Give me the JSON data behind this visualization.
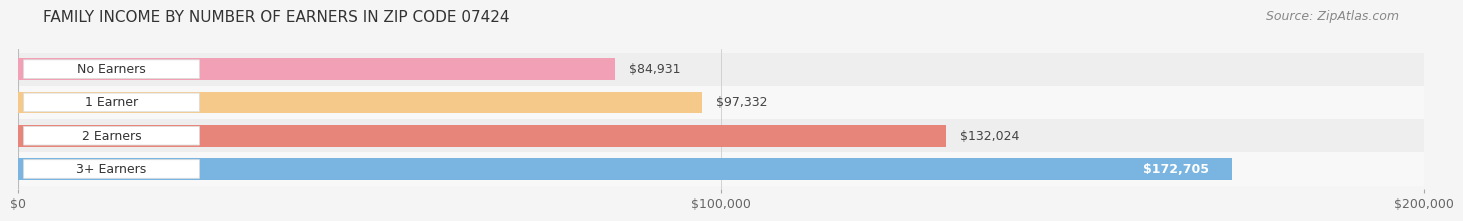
{
  "title": "FAMILY INCOME BY NUMBER OF EARNERS IN ZIP CODE 07424",
  "source": "Source: ZipAtlas.com",
  "categories": [
    "No Earners",
    "1 Earner",
    "2 Earners",
    "3+ Earners"
  ],
  "values": [
    84931,
    97332,
    132024,
    172705
  ],
  "labels": [
    "$84,931",
    "$97,332",
    "$132,024",
    "$172,705"
  ],
  "bar_colors": [
    "#f2a0b5",
    "#f5c98a",
    "#e8857a",
    "#7ab4e0"
  ],
  "x_max": 200000,
  "x_ticks": [
    0,
    100000,
    200000
  ],
  "x_tick_labels": [
    "$0",
    "$100,000",
    "$200,000"
  ],
  "title_fontsize": 11,
  "source_fontsize": 9,
  "label_fontsize": 9,
  "category_fontsize": 9,
  "background_color": "#f5f5f5",
  "row_bg_colors": [
    "#eeeeee",
    "#f8f8f8",
    "#eeeeee",
    "#f8f8f8"
  ],
  "bar_height": 0.65,
  "label_inside_threshold": 140000
}
